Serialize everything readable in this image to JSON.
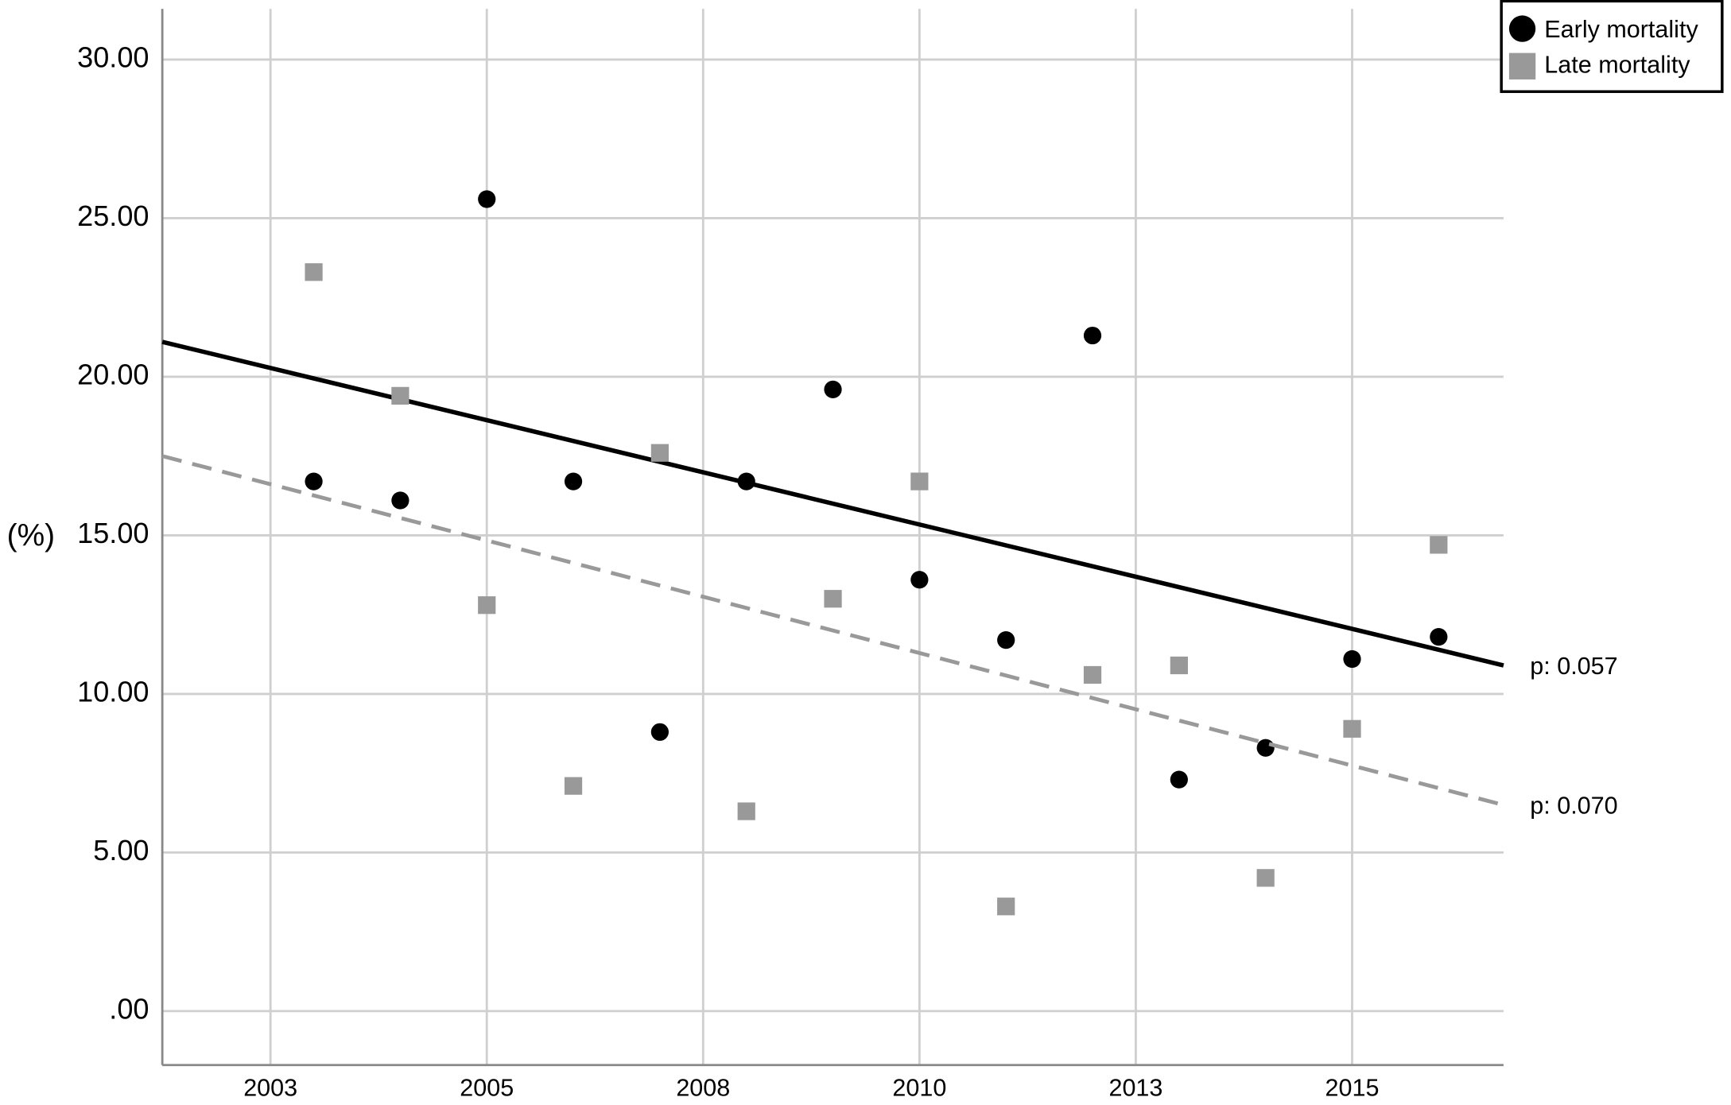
{
  "chart_data": {
    "type": "scatter",
    "y_label": "(%)",
    "x": [
      2003,
      2004,
      2005,
      2006,
      2007,
      2008,
      2009,
      2010,
      2011,
      2012,
      2013,
      2014,
      2015,
      2016
    ],
    "series": [
      {
        "name": "Early mortality",
        "color": "#000000",
        "marker": "circle",
        "values": [
          16.7,
          16.1,
          25.6,
          16.7,
          8.8,
          16.7,
          19.6,
          13.6,
          11.7,
          21.3,
          7.3,
          8.3,
          11.1,
          11.8
        ],
        "trend": {
          "x": [
            2001.25,
            2016.75
          ],
          "values": [
            21.1,
            10.9
          ],
          "color": "#000000",
          "line_style": "solid",
          "annotation": "p: 0.057"
        }
      },
      {
        "name": "Late mortality",
        "color": "#999999",
        "marker": "square",
        "values": [
          23.3,
          19.4,
          12.8,
          7.1,
          17.6,
          6.3,
          13.0,
          16.7,
          3.3,
          10.6,
          10.9,
          4.2,
          8.9,
          14.7
        ],
        "trend": {
          "x": [
            2001.25,
            2016.75
          ],
          "values": [
            17.5,
            6.5
          ],
          "color": "#999999",
          "line_style": "dashed",
          "annotation": "p: 0.070"
        }
      }
    ],
    "xlim": [
      2001.25,
      2016.75
    ],
    "xticks": [
      {
        "value": 2002.5,
        "label": "2003"
      },
      2005,
      {
        "value": 2007.5,
        "label": "2008"
      },
      2010,
      {
        "value": 2012.5,
        "label": "2013"
      },
      2015
    ],
    "ylim": [
      -1.7,
      31.6
    ],
    "yticks": [
      {
        "value": 0,
        "label": ".00"
      },
      {
        "value": 5,
        "label": "5.00"
      },
      {
        "value": 10,
        "label": "10.00"
      },
      {
        "value": 15,
        "label": "15.00"
      },
      {
        "value": 20,
        "label": "20.00"
      },
      {
        "value": 25,
        "label": "25.00"
      },
      {
        "value": 30,
        "label": "30.00"
      }
    ],
    "grid": true,
    "legend": "top-right"
  }
}
